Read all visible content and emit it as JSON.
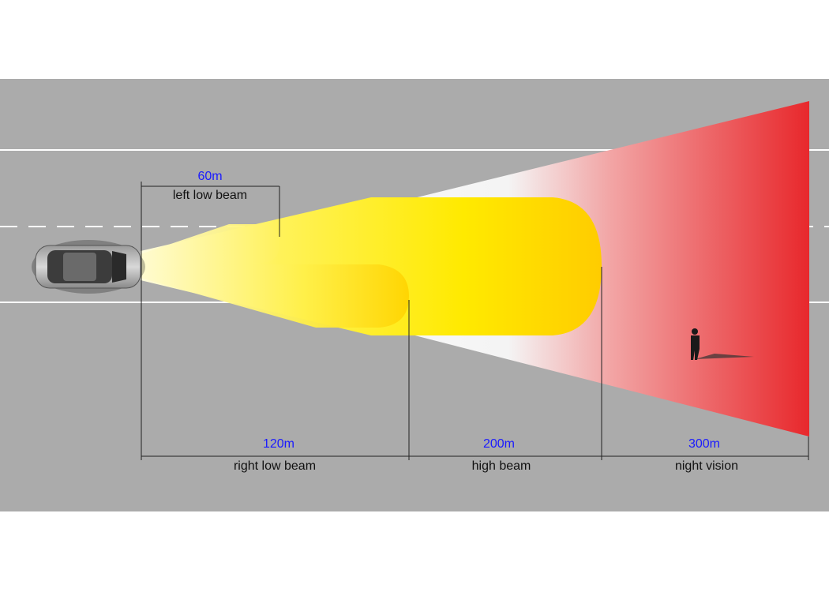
{
  "dimensions": [
    {
      "distance": "60m",
      "label": "left low beam"
    },
    {
      "distance": "120m",
      "label": "right low beam"
    },
    {
      "distance": "200m",
      "label": "high beam"
    },
    {
      "distance": "300m",
      "label": "night vision"
    }
  ]
}
